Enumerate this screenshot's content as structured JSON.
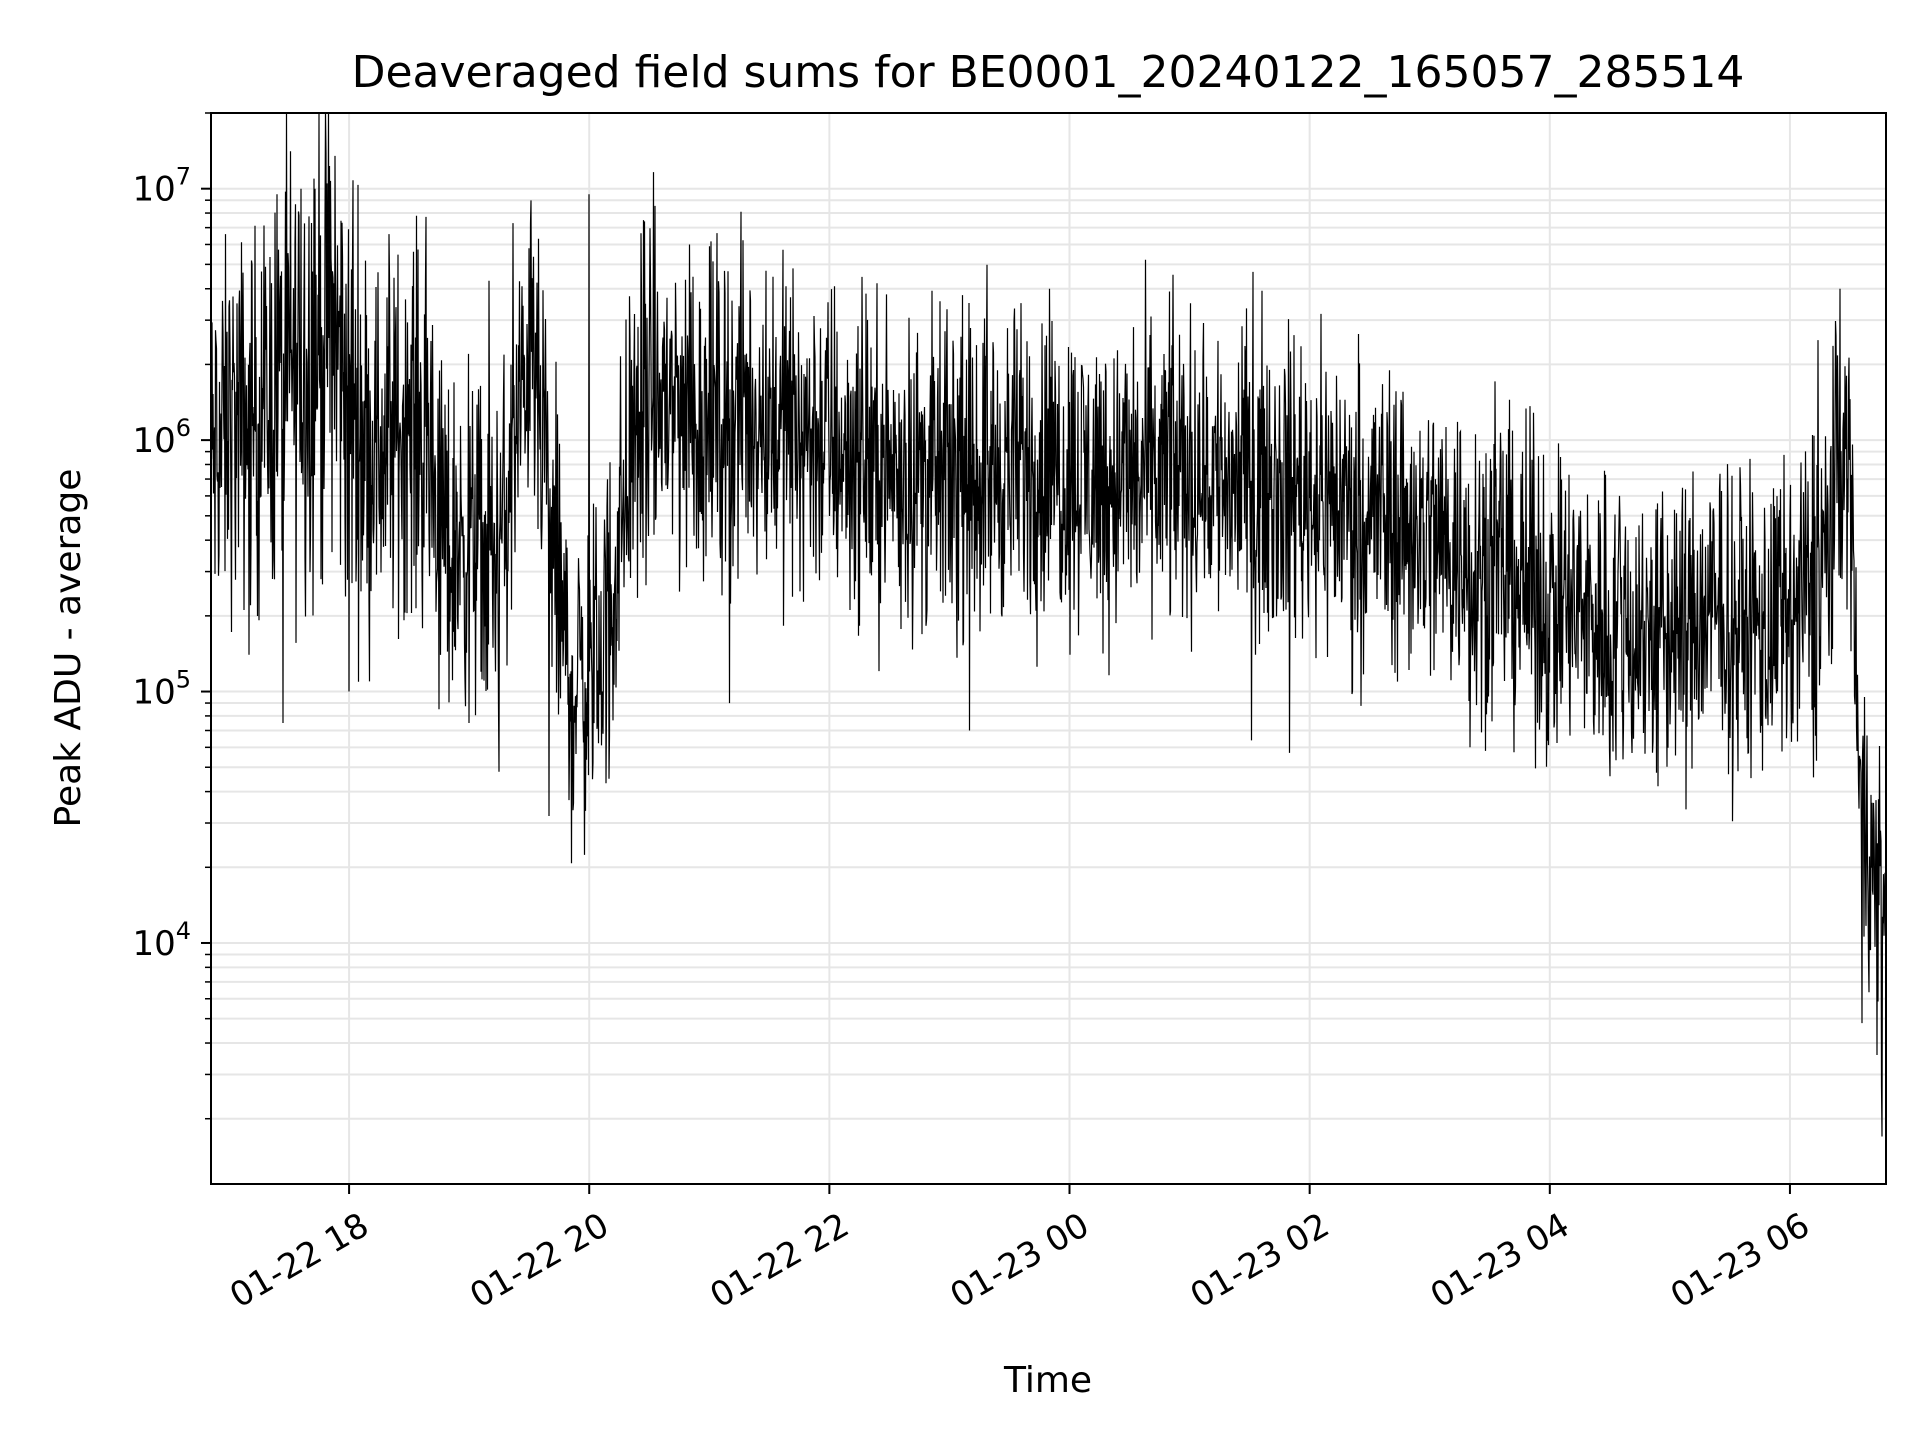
{
  "chart_data": {
    "type": "line",
    "title": "Deaveraged field sums for BE0001_20240122_165057_285514",
    "xlabel": "Time",
    "ylabel": "Peak ADU - average",
    "yscale": "log",
    "grid": true,
    "xlim": [
      "2024-01-22 16:51",
      "2024-01-23 06:48"
    ],
    "ylim": [
      1100,
      20000000
    ],
    "x_ticks": [
      "01-22 18",
      "01-22 20",
      "01-22 22",
      "01-23 00",
      "01-23 02",
      "01-23 04",
      "01-23 06"
    ],
    "y_ticks": [
      {
        "base": "10",
        "exp": "4",
        "value": 10000
      },
      {
        "base": "10",
        "exp": "5",
        "value": 100000
      },
      {
        "base": "10",
        "exp": "6",
        "value": 1000000
      },
      {
        "base": "10",
        "exp": "7",
        "value": 10000000
      }
    ],
    "line_color": "#000000",
    "series": [
      {
        "x": [
          "2024-01-22 16:51",
          "2024-01-22 17:00",
          "2024-01-22 17:10",
          "2024-01-22 17:20",
          "2024-01-22 17:30",
          "2024-01-22 17:40",
          "2024-01-22 17:50",
          "2024-01-22 18:00",
          "2024-01-22 18:10",
          "2024-01-22 18:20",
          "2024-01-22 18:30",
          "2024-01-22 18:40",
          "2024-01-22 18:50",
          "2024-01-22 19:00",
          "2024-01-22 19:10",
          "2024-01-22 19:20",
          "2024-01-22 19:30",
          "2024-01-22 19:40",
          "2024-01-22 19:50",
          "2024-01-22 20:00",
          "2024-01-22 20:10",
          "2024-01-22 20:20",
          "2024-01-22 20:30",
          "2024-01-22 20:40",
          "2024-01-22 20:50",
          "2024-01-22 21:00",
          "2024-01-22 21:15",
          "2024-01-22 21:30",
          "2024-01-22 21:45",
          "2024-01-22 22:00",
          "2024-01-22 22:20",
          "2024-01-22 22:40",
          "2024-01-22 23:00",
          "2024-01-22 23:20",
          "2024-01-22 23:40",
          "2024-01-23 00:00",
          "2024-01-23 00:20",
          "2024-01-23 00:40",
          "2024-01-23 01:00",
          "2024-01-23 01:20",
          "2024-01-23 01:40",
          "2024-01-23 02:00",
          "2024-01-23 02:20",
          "2024-01-23 02:40",
          "2024-01-23 03:00",
          "2024-01-23 03:20",
          "2024-01-23 03:40",
          "2024-01-23 04:00",
          "2024-01-23 04:20",
          "2024-01-23 04:40",
          "2024-01-23 05:00",
          "2024-01-23 05:20",
          "2024-01-23 05:40",
          "2024-01-23 06:00",
          "2024-01-23 06:10",
          "2024-01-23 06:20",
          "2024-01-23 06:25",
          "2024-01-23 06:30",
          "2024-01-23 06:35",
          "2024-01-23 06:40",
          "2024-01-23 06:48"
        ],
        "y": [
          800000,
          1100000,
          1200000,
          1400000,
          1800000,
          2200000,
          2800000,
          1400000,
          1000000,
          900000,
          1300000,
          900000,
          350000,
          450000,
          300000,
          550000,
          2500000,
          500000,
          110000,
          110000,
          200000,
          900000,
          1300000,
          1500000,
          1300000,
          1200000,
          1300000,
          1250000,
          1100000,
          1000000,
          800000,
          750000,
          700000,
          750000,
          800000,
          750000,
          700000,
          720000,
          750000,
          700000,
          700000,
          650000,
          550000,
          500000,
          420000,
          350000,
          300000,
          220000,
          200000,
          180000,
          170000,
          200000,
          180000,
          180000,
          250000,
          400000,
          900000,
          800000,
          50000,
          20000,
          12000
        ],
        "spread": [
          0.45,
          0.45,
          0.45,
          0.45,
          0.55,
          0.6,
          0.6,
          0.55,
          0.45,
          0.45,
          0.45,
          0.45,
          0.4,
          0.4,
          0.4,
          0.4,
          0.35,
          0.45,
          0.4,
          0.4,
          0.4,
          0.45,
          0.45,
          0.45,
          0.45,
          0.4,
          0.4,
          0.4,
          0.4,
          0.4,
          0.38,
          0.38,
          0.38,
          0.38,
          0.38,
          0.38,
          0.38,
          0.38,
          0.38,
          0.38,
          0.38,
          0.38,
          0.38,
          0.38,
          0.38,
          0.38,
          0.38,
          0.38,
          0.38,
          0.38,
          0.38,
          0.38,
          0.38,
          0.38,
          0.4,
          0.45,
          0.35,
          0.35,
          0.3,
          0.4,
          0.45
        ],
        "peaks": [
          {
            "x": "2024-01-22 17:00",
            "y": 3400000
          },
          {
            "x": "2024-01-22 17:24",
            "y": 9500000
          },
          {
            "x": "2024-01-22 17:36",
            "y": 10000000
          },
          {
            "x": "2024-01-22 17:43",
            "y": 10000000
          },
          {
            "x": "2024-01-22 17:49",
            "y": 10500000
          },
          {
            "x": "2024-01-22 17:53",
            "y": 13500000
          },
          {
            "x": "2024-01-22 18:02",
            "y": 10800000
          },
          {
            "x": "2024-01-22 18:20",
            "y": 6600000
          },
          {
            "x": "2024-01-22 19:10",
            "y": 4300000
          },
          {
            "x": "2024-01-22 19:22",
            "y": 7300000
          },
          {
            "x": "2024-01-22 19:30",
            "y": 5800000
          },
          {
            "x": "2024-01-22 20:00",
            "y": 9500000
          },
          {
            "x": "2024-01-22 20:27",
            "y": 7500000
          },
          {
            "x": "2024-01-22 20:50",
            "y": 6000000
          },
          {
            "x": "2024-01-22 21:00",
            "y": 5900000
          },
          {
            "x": "2024-01-22 23:50",
            "y": 4000000
          },
          {
            "x": "2024-01-23 00:50",
            "y": 3900000
          },
          {
            "x": "2024-01-23 06:14",
            "y": 2500000
          },
          {
            "x": "2024-01-23 06:25",
            "y": 4000000
          }
        ],
        "dips": [
          {
            "x": "2024-01-22 17:10",
            "y": 140000
          },
          {
            "x": "2024-01-22 17:27",
            "y": 75000
          },
          {
            "x": "2024-01-22 18:00",
            "y": 100000
          },
          {
            "x": "2024-01-22 18:45",
            "y": 85000
          },
          {
            "x": "2024-01-22 19:00",
            "y": 75000
          },
          {
            "x": "2024-01-22 19:15",
            "y": 48000
          },
          {
            "x": "2024-01-22 19:40",
            "y": 32000
          },
          {
            "x": "2024-01-22 19:50",
            "y": 37000
          },
          {
            "x": "2024-01-22 20:10",
            "y": 45000
          },
          {
            "x": "2024-01-22 21:10",
            "y": 90000
          },
          {
            "x": "2024-01-22 23:10",
            "y": 70000
          },
          {
            "x": "2024-01-23 01:50",
            "y": 57000
          },
          {
            "x": "2024-01-23 03:20",
            "y": 60000
          },
          {
            "x": "2024-01-23 04:30",
            "y": 46000
          },
          {
            "x": "2024-01-23 04:54",
            "y": 42000
          },
          {
            "x": "2024-01-23 06:36",
            "y": 4800
          },
          {
            "x": "2024-01-23 06:46",
            "y": 1700
          },
          {
            "x": "2024-01-23 06:48",
            "y": 3500
          }
        ]
      }
    ]
  }
}
